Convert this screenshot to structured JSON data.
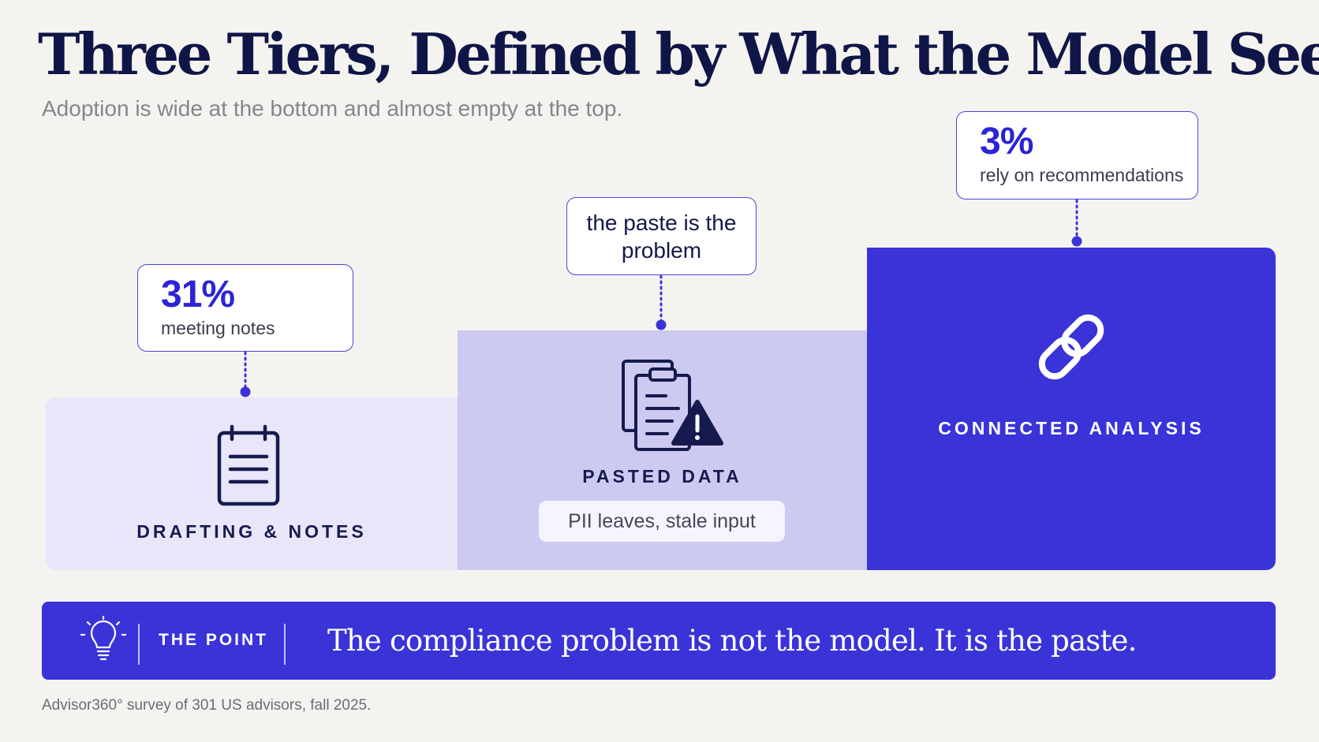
{
  "header": {
    "title": "Three Tiers, Defined by What the Model Sees.",
    "subtitle": "Adoption is wide at the bottom and almost empty at the top."
  },
  "tiers": [
    {
      "label": "DRAFTING & NOTES",
      "icon": "notepad-icon",
      "callout": {
        "value": "31%",
        "text": "meeting notes"
      }
    },
    {
      "label": "PASTED DATA",
      "icon": "clipboard-warning-icon",
      "callout": {
        "text": "the paste is the problem"
      },
      "pill": "PII leaves, stale input"
    },
    {
      "label": "CONNECTED ANALYSIS",
      "icon": "chain-link-icon",
      "callout": {
        "value": "3%",
        "text": "rely on recommendations"
      }
    }
  ],
  "banner": {
    "icon": "lightbulb-icon",
    "label": "THE POINT",
    "text": "The compliance problem is not the model. It is the paste."
  },
  "footnote": "Advisor360° survey of 301 US advisors, fall 2025.",
  "colors": {
    "background": "#f5f3ef",
    "tier1": "#e8e6f8",
    "tier2": "#cdcaf2",
    "accent": "#3a33d8",
    "ink": "#0f1647"
  }
}
